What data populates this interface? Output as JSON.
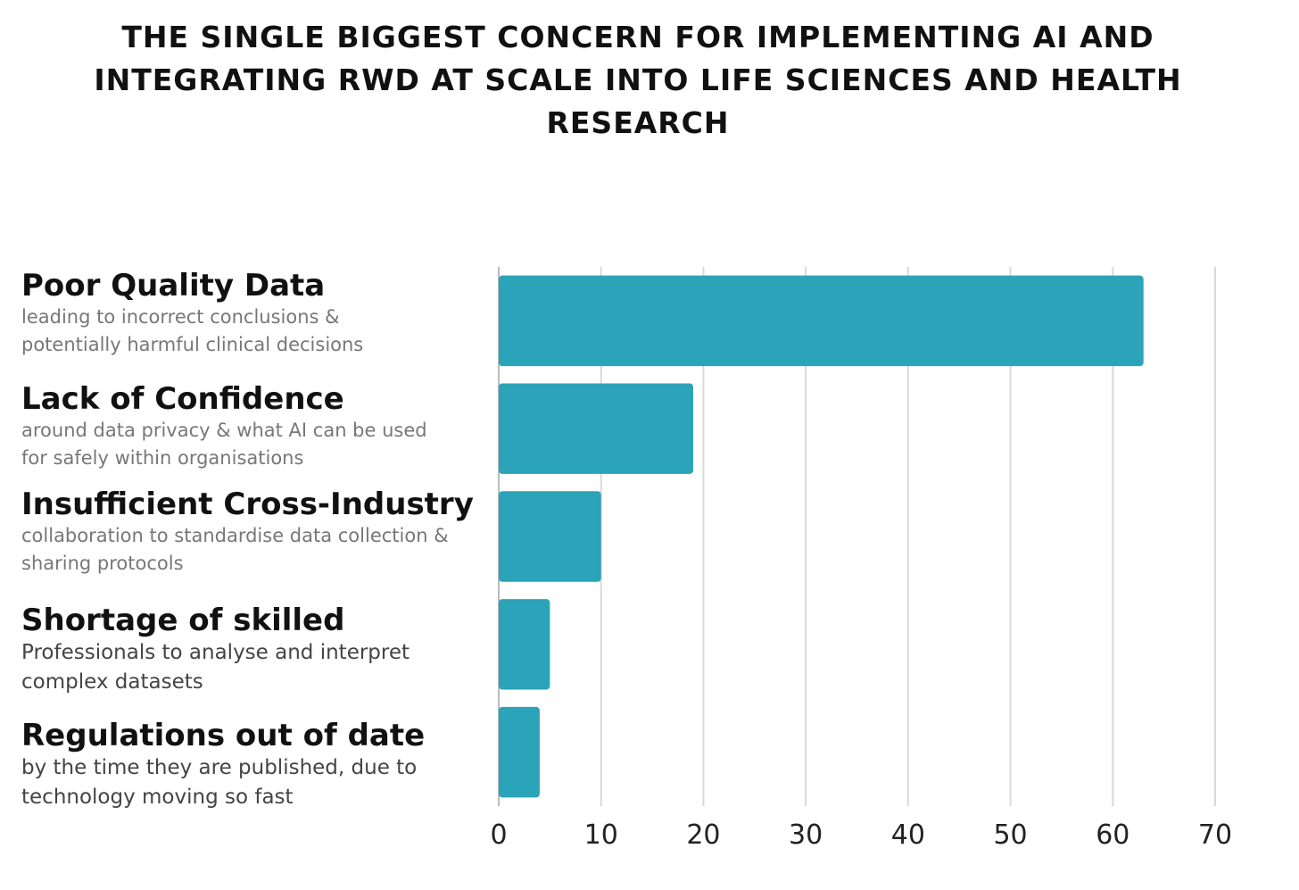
{
  "chart_data": {
    "type": "bar",
    "orientation": "horizontal",
    "title": "THE SINGLE BIGGEST CONCERN FOR IMPLEMENTING AI AND INTEGRATING RWD AT SCALE INTO LIFE SCIENCES AND HEALTH RESEARCH",
    "categories": [
      {
        "title": "Poor Quality Data",
        "subtitle": "leading to incorrect conclusions & potentially harmful clinical decisions"
      },
      {
        "title": "Lack of Confidence",
        "subtitle": "around data privacy & what AI can be used for safely within organisations"
      },
      {
        "title": "Insufficient Cross-Industry",
        "subtitle": "collaboration to standardise data collection & sharing protocols"
      },
      {
        "title": "Shortage of skilled",
        "subtitle": "Professionals to analyse and interpret complex datasets"
      },
      {
        "title": "Regulations out of date",
        "subtitle": "by the time they are published, due to technology moving so fast"
      }
    ],
    "values": [
      63,
      19,
      10,
      5,
      4
    ],
    "xlim": [
      0,
      70
    ],
    "xticks": [
      "0",
      "10",
      "20",
      "30",
      "40",
      "50",
      "60",
      "70"
    ],
    "xlabel": "",
    "ylabel": "",
    "grid": "vertical",
    "legend": "none",
    "bar_color": "#2BA3B8",
    "grid_color": "#D9D9D9"
  }
}
